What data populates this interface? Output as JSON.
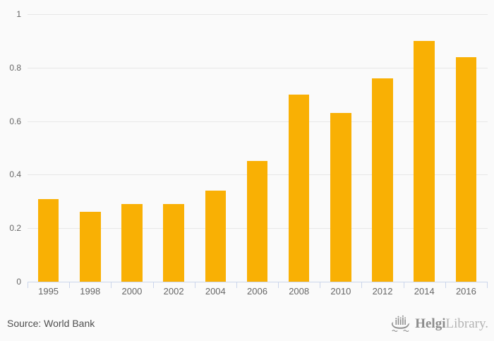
{
  "chart_data": {
    "type": "bar",
    "title": "",
    "xlabel": "",
    "ylabel": "",
    "categories": [
      "1995",
      "1998",
      "2000",
      "2002",
      "2004",
      "2006",
      "2008",
      "2010",
      "2012",
      "2014",
      "2016"
    ],
    "values": [
      0.31,
      0.26,
      0.29,
      0.29,
      0.34,
      0.45,
      0.7,
      0.63,
      0.76,
      0.9,
      0.84
    ],
    "ylim": [
      0,
      1
    ],
    "yticks": [
      0,
      0.2,
      0.4,
      0.6,
      0.8,
      1
    ],
    "ytick_labels": [
      "0",
      "0.2",
      "0.4",
      "0.6",
      "0.8",
      "1"
    ],
    "grid": true,
    "legend": false,
    "bar_color": "#f9b004"
  },
  "footer": {
    "source_label": "Source: World Bank",
    "logo": {
      "bold": "Helgi",
      "light": "Library."
    }
  },
  "colors": {
    "background": "#fafafa",
    "gridline": "#e7e7e7",
    "axis": "#ccd6eb",
    "axis_label": "#666666",
    "source_text": "#4f4f4f",
    "logo_gray": "#8c8c8c",
    "logo_light_gray": "#b3b3b3",
    "bar": "#f9b004"
  }
}
